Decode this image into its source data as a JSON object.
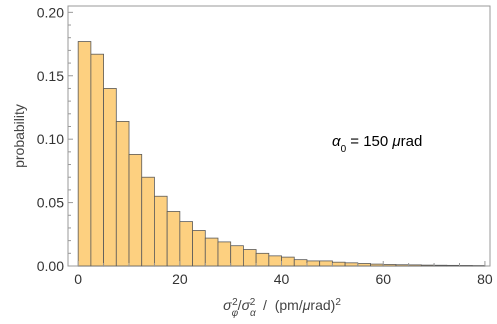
{
  "chart_data": {
    "type": "bar",
    "title": "",
    "annotation": {
      "symbol": "α",
      "subscript": "0",
      "rest": " = 150 ",
      "mu": "μ",
      "unit": "rad"
    },
    "xlabel": {
      "num": "σ",
      "num_sub": "φ",
      "num_sup": "2",
      "slash": "/",
      "den": "σ",
      "den_sub": "α",
      "den_sup": "2",
      "sep": "  /  (pm/",
      "mu": "μ",
      "unit": "rad)",
      "unit_sup": "2"
    },
    "ylabel": "probability",
    "xlim": [
      -2,
      81
    ],
    "ylim": [
      0,
      0.205
    ],
    "x_ticks": [
      0,
      20,
      40,
      60,
      80
    ],
    "x_tick_labels": [
      "0",
      "20",
      "40",
      "60",
      "80"
    ],
    "y_ticks": [
      0,
      0.05,
      0.1,
      0.15,
      0.2
    ],
    "y_tick_labels": [
      "0.00",
      "0.05",
      "0.10",
      "0.15",
      "0.20"
    ],
    "bin_width": 2.5,
    "bin_edges_start": 0,
    "values": [
      0.177,
      0.167,
      0.14,
      0.114,
      0.088,
      0.07,
      0.055,
      0.043,
      0.035,
      0.028,
      0.022,
      0.019,
      0.016,
      0.013,
      0.01,
      0.008,
      0.007,
      0.005,
      0.004,
      0.004,
      0.003,
      0.0025,
      0.002,
      0.0015,
      0.0012,
      0.001,
      0.0009,
      0.0007,
      0.0006,
      0.0005,
      0.0004,
      0.0003
    ],
    "colors": {
      "bar_fill": "#fdd080",
      "bar_stroke": "#5a5a5a",
      "axis": "#999999"
    },
    "grid": false,
    "legend": "none"
  }
}
